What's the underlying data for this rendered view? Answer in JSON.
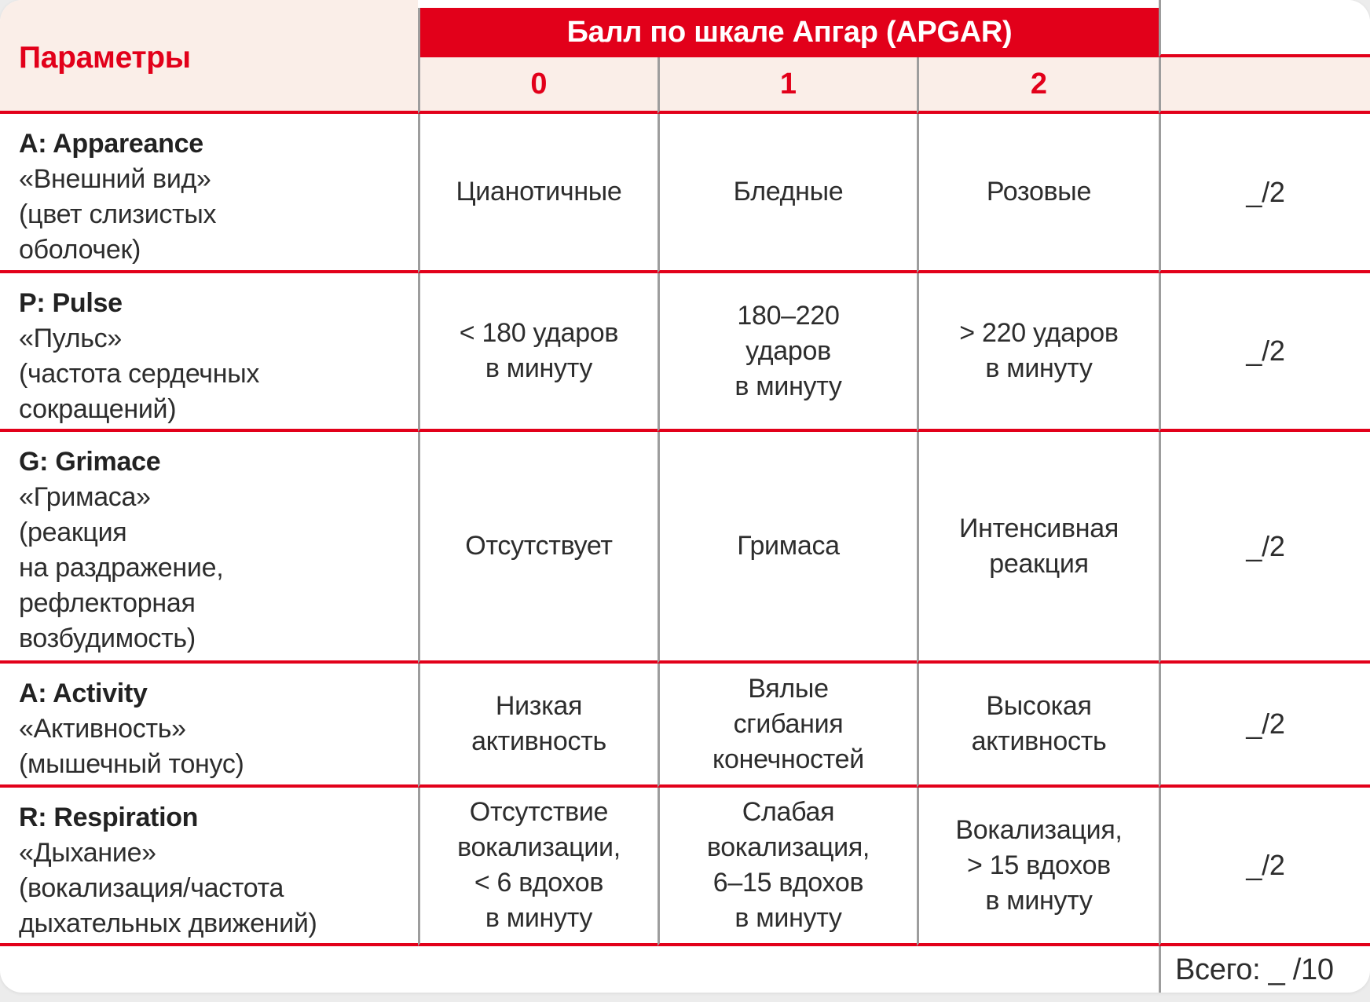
{
  "colors": {
    "red": "#e2001a",
    "cream": "#faeee8",
    "line_gray": "#9d9d9d",
    "text": "#2d2d2d",
    "page_bg": "#ececec",
    "card_bg": "#ffffff"
  },
  "table": {
    "params_header": "Параметры",
    "band_header": "Балл по шкале Апгар (APGAR)",
    "score_headers": [
      "0",
      "1",
      "2"
    ],
    "rows": [
      {
        "title": "A: Appareance",
        "subtitle": "«Внешний вид»\n(цвет слизистых\nоболочек)",
        "cells": [
          "Цианотичные",
          "Бледные",
          "Розовые"
        ],
        "points": "_/2"
      },
      {
        "title": "P: Pulse",
        "subtitle": "«Пульс»\n(частота сердечных\nсокращений)",
        "cells": [
          "< 180 ударов\nв минуту",
          "180–220\nударов\nв минуту",
          "> 220 ударов\nв минуту"
        ],
        "points": "_/2"
      },
      {
        "title": "G: Grimace",
        "subtitle": "«Гримаса»\n(реакция\nна раздражение,\nрефлекторная\nвозбудимость)",
        "cells": [
          "Отсутствует",
          "Гримаса",
          "Интенсивная\nреакция"
        ],
        "points": "_/2"
      },
      {
        "title": "A: Activity",
        "subtitle": "«Активность»\n(мышечный тонус)",
        "cells": [
          "Низкая\nактивность",
          "Вялые\nсгибания\nконечностей",
          "Высокая\nактивность"
        ],
        "points": "_/2"
      },
      {
        "title": "R: Respiration",
        "subtitle": "«Дыхание»\n(вокализация/частота\nдыхательных движений)",
        "cells": [
          "Отсутствие\nвокализации,\n< 6 вдохов\nв минуту",
          "Слабая\nвокализация,\n6–15 вдохов\nв минуту",
          "Вокализация,\n> 15 вдохов\nв минуту"
        ],
        "points": "_/2"
      }
    ],
    "total_label": "Всего: _ /10"
  }
}
